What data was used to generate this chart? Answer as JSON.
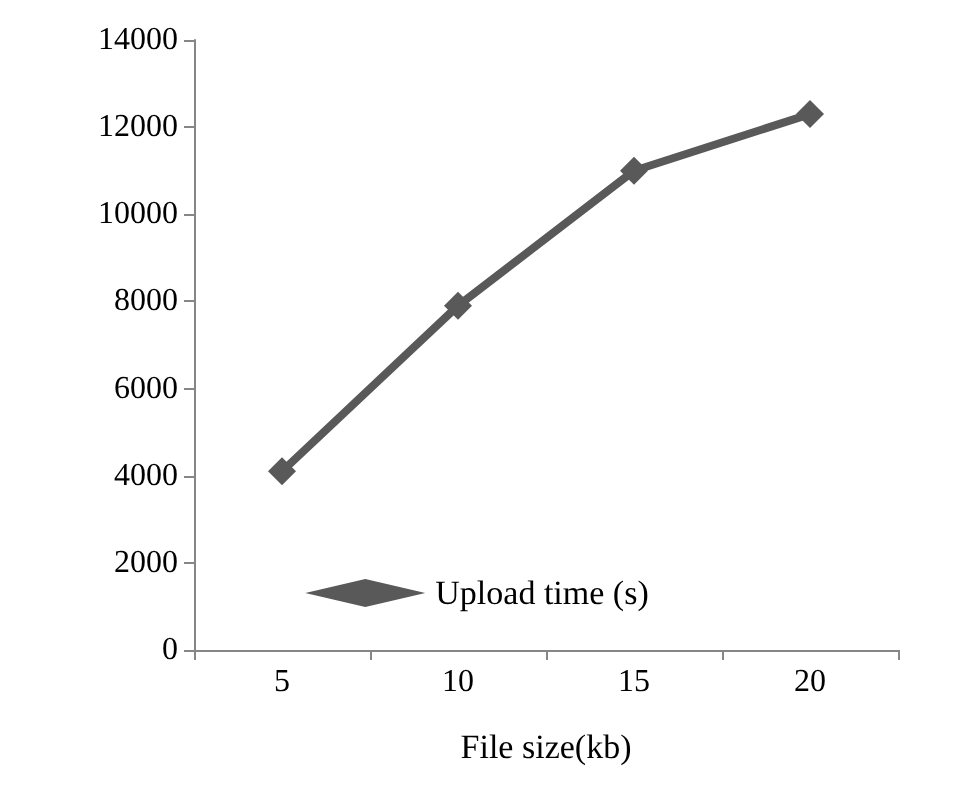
{
  "chart_data": {
    "type": "line",
    "xlabel": "File size(kb)",
    "categories": [
      "5",
      "10",
      "15",
      "20"
    ],
    "series": [
      {
        "name": "Upload time (s)",
        "color": "#595959",
        "values": [
          4100,
          7900,
          11000,
          12300
        ]
      }
    ],
    "ylim": [
      0,
      14000
    ],
    "yticks": [
      0,
      2000,
      4000,
      6000,
      8000,
      10000,
      12000,
      14000
    ],
    "grid": false,
    "legend": "bottom",
    "marker": "diamond",
    "line_style": "solid"
  }
}
